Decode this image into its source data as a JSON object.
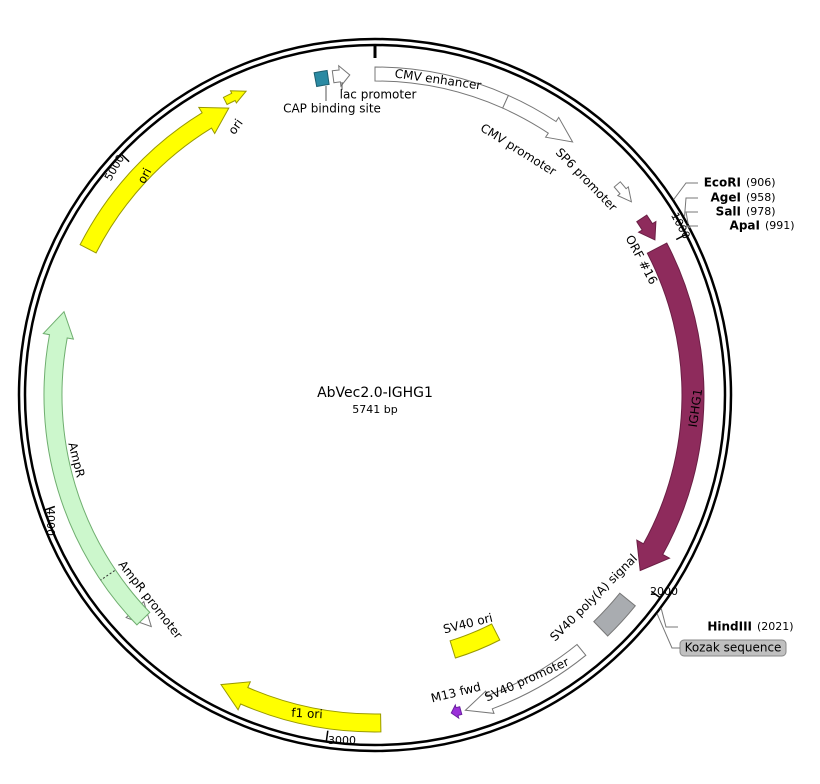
{
  "title": "AbVec2.0-IGHG1",
  "length": "5741 bp",
  "features": [
    {
      "label": "CMV enhancer"
    },
    {
      "label": "CMV promoter"
    },
    {
      "label": "SP6 promoter"
    },
    {
      "label": "ORF #16"
    },
    {
      "label": "IGHG1"
    },
    {
      "label": "SV40 poly(A) signal"
    },
    {
      "label": "SV40 promoter"
    },
    {
      "label": "M13 fwd"
    },
    {
      "label": "SV40 ori"
    },
    {
      "label": "f1 ori"
    },
    {
      "label": "AmpR promoter"
    },
    {
      "label": "AmpR"
    },
    {
      "label": "ori"
    },
    {
      "label": "ori"
    },
    {
      "label": "lac promoter"
    },
    {
      "label": "CAP binding site"
    }
  ],
  "sites": [
    {
      "name": "EcoRI",
      "position": "(906)"
    },
    {
      "name": "AgeI",
      "position": "(958)"
    },
    {
      "name": "SalI",
      "position": "(978)"
    },
    {
      "name": "ApaI",
      "position": "(991)"
    },
    {
      "name": "HindIII",
      "position": "(2021)"
    }
  ],
  "ticks": [
    "1000",
    "2000",
    "3000",
    "4000",
    "5000"
  ],
  "annotation": "Kozak sequence"
}
